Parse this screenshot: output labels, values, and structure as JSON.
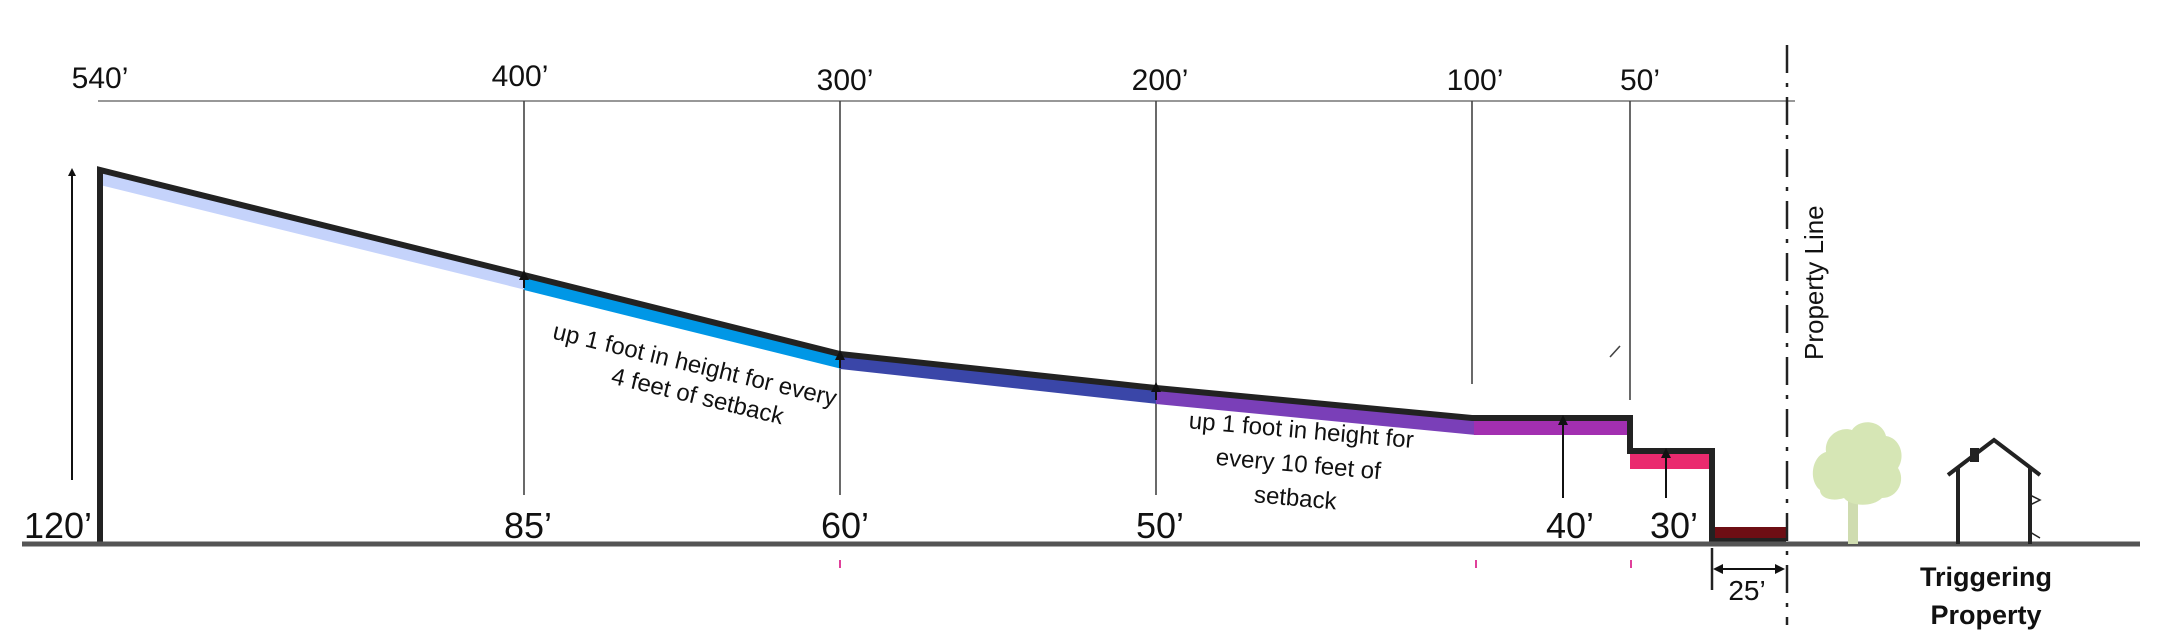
{
  "distance_ticks": [
    {
      "id": "540",
      "label": "540’"
    },
    {
      "id": "400",
      "label": "400’"
    },
    {
      "id": "300",
      "label": "300’"
    },
    {
      "id": "200",
      "label": "200’"
    },
    {
      "id": "100",
      "label": "100’"
    },
    {
      "id": "50",
      "label": "50’"
    }
  ],
  "heights": [
    {
      "id": "120",
      "label": "120’"
    },
    {
      "id": "85",
      "label": "85’"
    },
    {
      "id": "60",
      "label": "60’"
    },
    {
      "id": "50",
      "label": "50’"
    },
    {
      "id": "40",
      "label": "40’"
    },
    {
      "id": "30",
      "label": "30’"
    }
  ],
  "notes": {
    "slope_4": [
      "up 1 foot in height for every",
      "4 feet of setback"
    ],
    "slope_10": [
      "up 1 foot in height for",
      "every 10 feet of",
      "setback"
    ]
  },
  "setback": {
    "label": "25’"
  },
  "property_line": {
    "label": "Property Line"
  },
  "triggering_property": {
    "lines": [
      "Triggering",
      "Property"
    ]
  },
  "colors": {
    "outline": "#222222",
    "ground": "#555555",
    "band_light": "#c5d3fb",
    "band_blue": "#0097e6",
    "band_indigo": "#3a46a8",
    "band_purple": "#7a3fb8",
    "band_magenta": "#a22fb0",
    "band_pink": "#ea2a6e",
    "band_darkred": "#6e0e14",
    "tree": "#d6e6b5",
    "house": "#222222",
    "tick_mark": "#e0409a"
  }
}
